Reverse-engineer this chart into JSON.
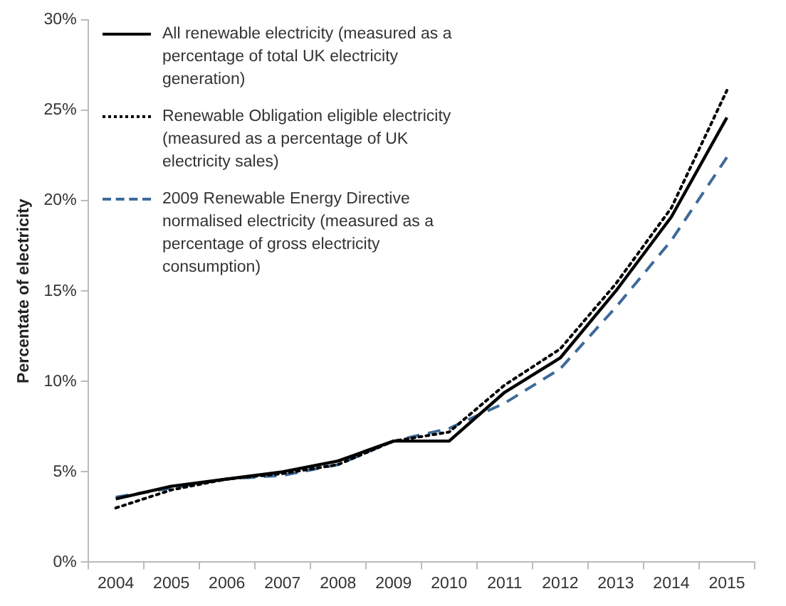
{
  "chart_data": {
    "type": "line",
    "ylabel": "Percentate of electricity",
    "categories": [
      "2004",
      "2005",
      "2006",
      "2007",
      "2008",
      "2009",
      "2010",
      "2011",
      "2012",
      "2013",
      "2014",
      "2015"
    ],
    "ylim": [
      0,
      30
    ],
    "yticks": [
      {
        "value": 0,
        "label": "0%"
      },
      {
        "value": 5,
        "label": "5%"
      },
      {
        "value": 10,
        "label": "10%"
      },
      {
        "value": 15,
        "label": "15%"
      },
      {
        "value": 20,
        "label": "20%"
      },
      {
        "value": 25,
        "label": "25%"
      },
      {
        "value": 30,
        "label": "30%"
      }
    ],
    "legend": "top left",
    "marker": "none",
    "series": [
      {
        "name": "All renewable electricity (measured as a percentage of total UK electricity generation)",
        "color": "#000000",
        "line_style": "solid",
        "values": [
          3.5,
          4.2,
          4.6,
          5.0,
          5.6,
          6.7,
          6.7,
          9.4,
          11.3,
          15.0,
          19.1,
          24.6
        ]
      },
      {
        "name": "Renewable Obligation eligible electricity (measured as a percentage of UK electricity sales)",
        "color": "#000000",
        "line_style": "dotted",
        "values": [
          3.0,
          4.0,
          4.6,
          4.9,
          5.4,
          6.7,
          7.2,
          9.8,
          11.8,
          15.4,
          19.6,
          26.1
        ]
      },
      {
        "name": "2009 Renewable Energy Directive normalised electricity (measured as a percentage of gross electricity consumption)",
        "color": "#3d6a99",
        "line_style": "dashed",
        "values": [
          3.6,
          4.1,
          4.6,
          4.8,
          5.4,
          6.7,
          7.4,
          8.8,
          10.7,
          14.1,
          17.8,
          22.4
        ]
      }
    ]
  }
}
